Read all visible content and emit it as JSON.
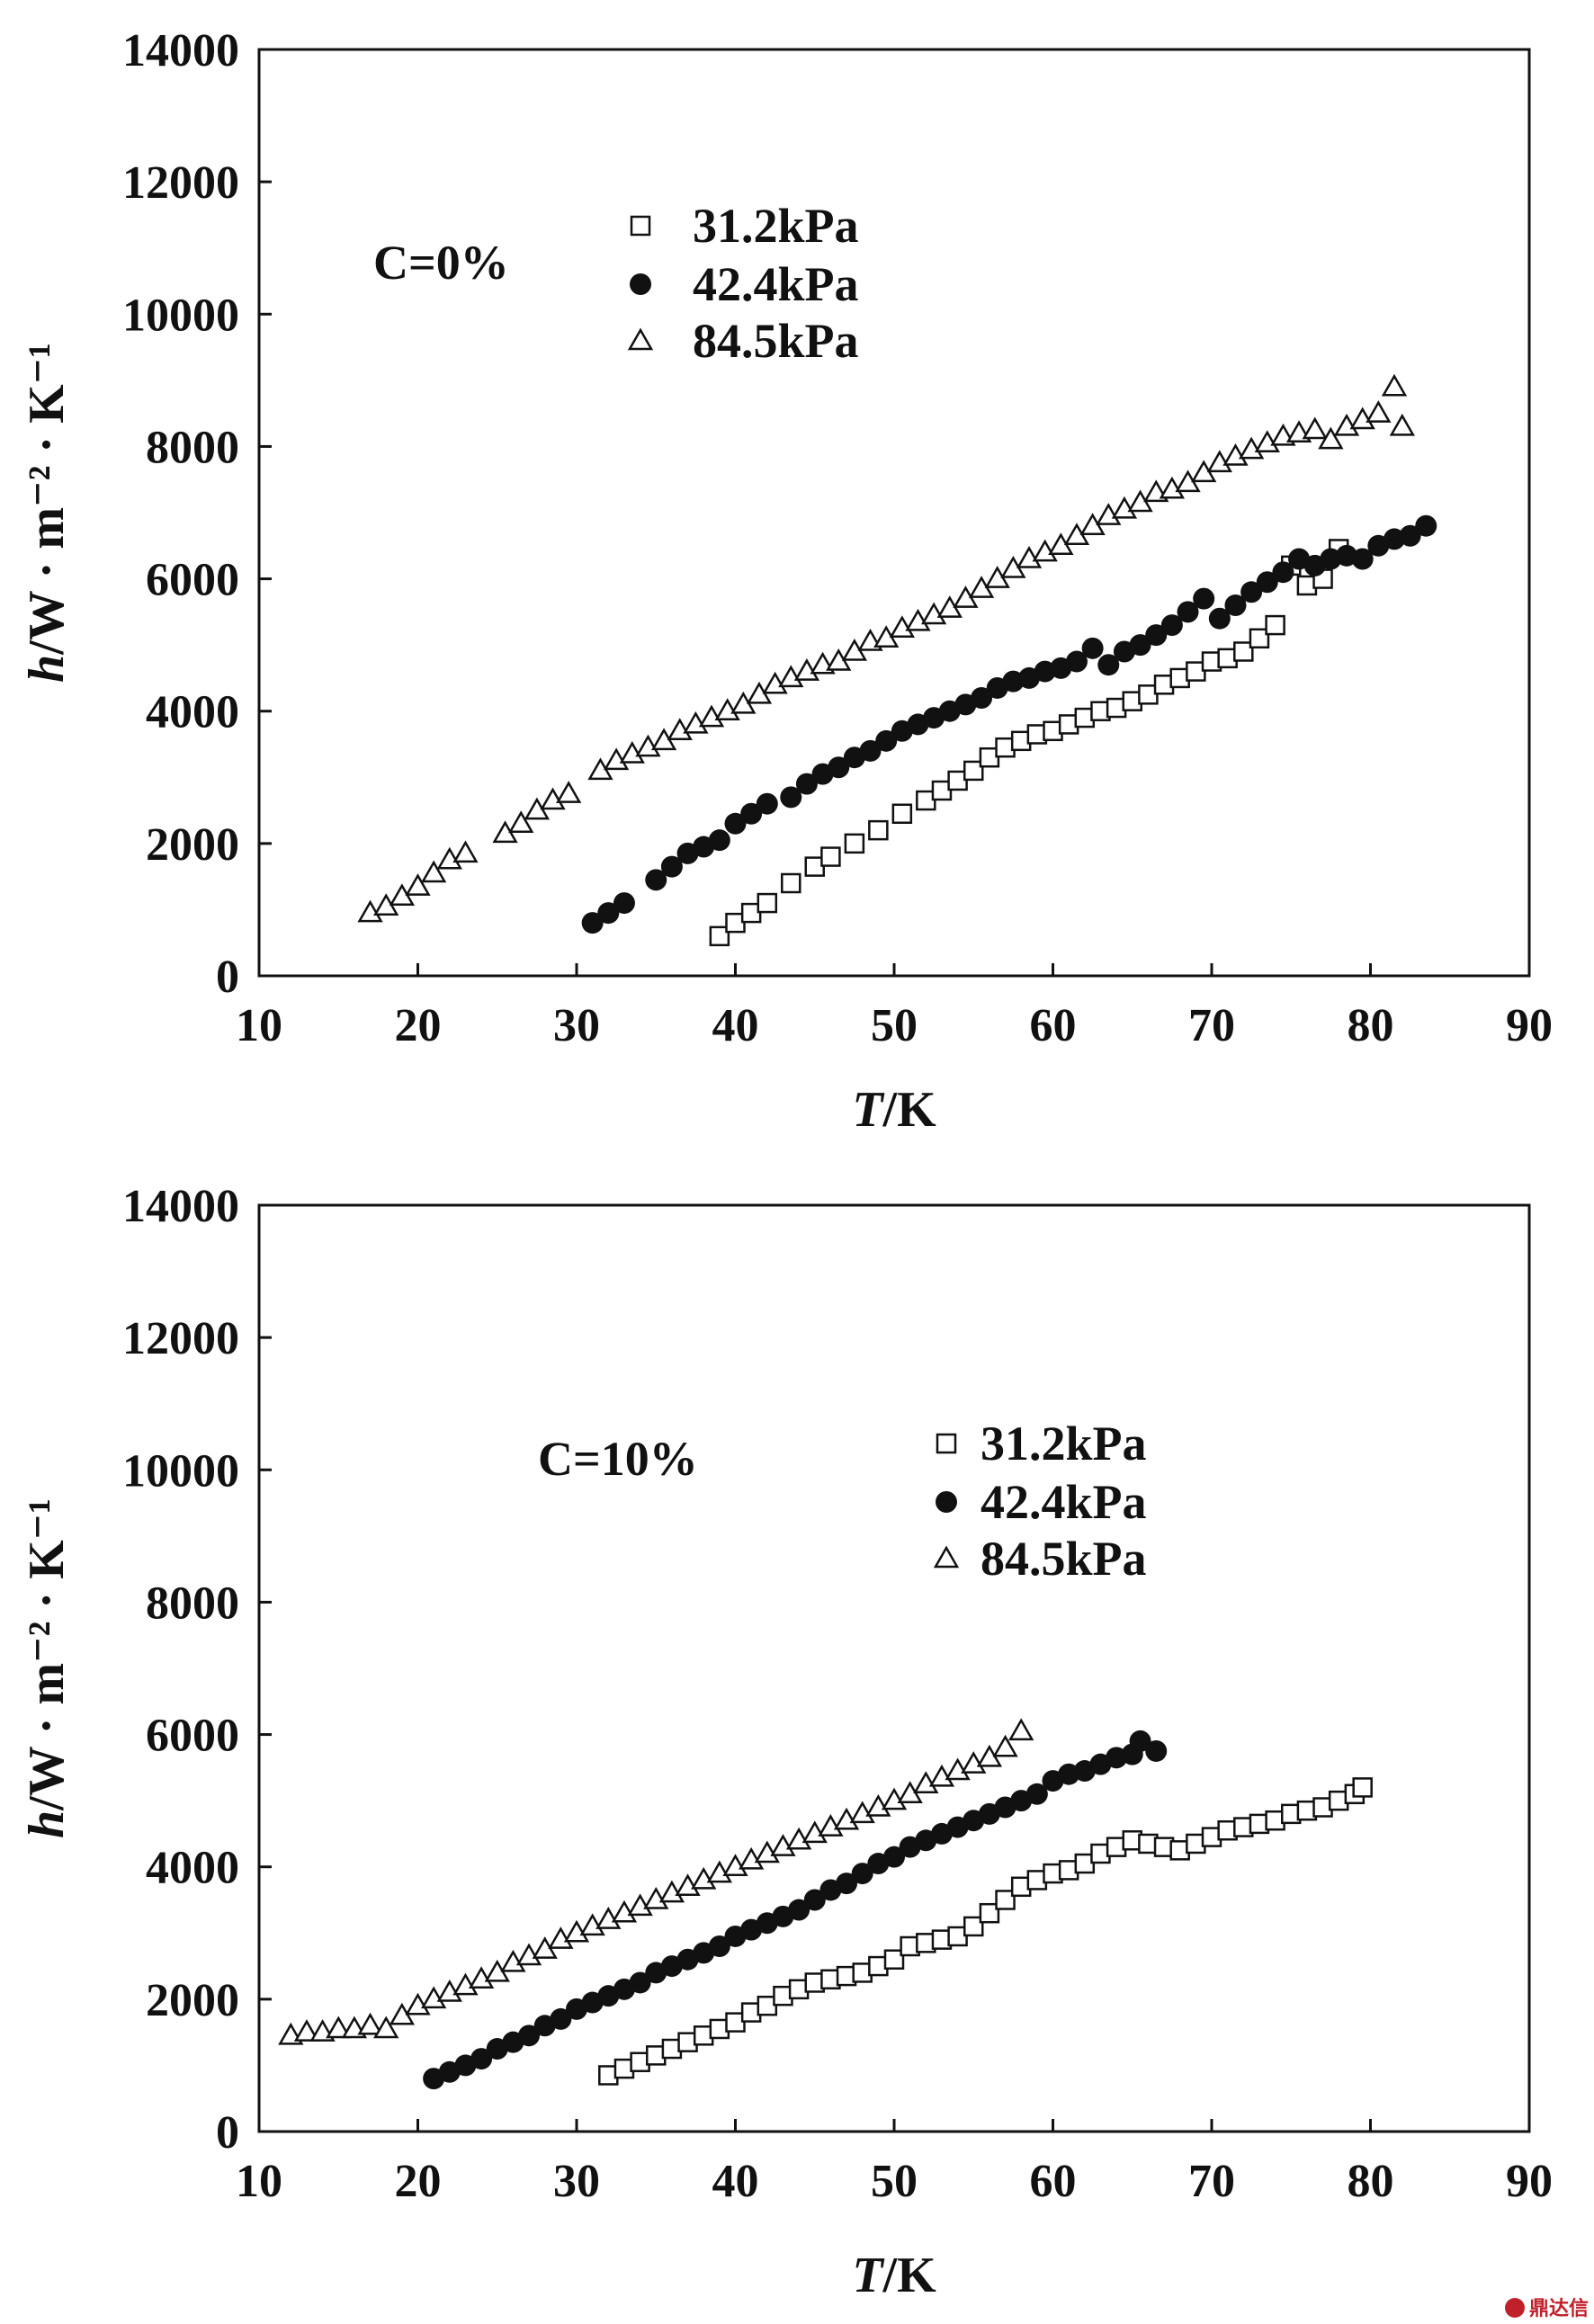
{
  "chart_data": [
    {
      "type": "scatter",
      "xlabel_italic": "T",
      "xlabel_rest": "/K",
      "ylabel_italic": "h",
      "ylabel_rest": "/W · m⁻² · K⁻¹",
      "xlim": [
        10,
        90
      ],
      "ylim": [
        0,
        14000
      ],
      "xticks": [
        "10",
        "20",
        "30",
        "40",
        "50",
        "60",
        "70",
        "80",
        "90"
      ],
      "yticks": [
        "0",
        "2000",
        "4000",
        "6000",
        "8000",
        "10000",
        "12000",
        "14000"
      ],
      "annotation": "C=0%",
      "legend_placement": "top-left",
      "grid": false,
      "series": [
        {
          "name": "31.2kPa",
          "marker": "open-square",
          "x": [
            39,
            40,
            41,
            42,
            43.5,
            45,
            46,
            47.5,
            49,
            50.5,
            52,
            53,
            54,
            55,
            56,
            57,
            58,
            59,
            60,
            61,
            62,
            63,
            64,
            65,
            66,
            67,
            68,
            69,
            70,
            71,
            72,
            73,
            74,
            75,
            76,
            77,
            78
          ],
          "y": [
            600,
            800,
            950,
            1100,
            1400,
            1650,
            1800,
            2000,
            2200,
            2450,
            2650,
            2800,
            2950,
            3100,
            3300,
            3450,
            3550,
            3650,
            3700,
            3800,
            3900,
            4000,
            4050,
            4150,
            4250,
            4400,
            4500,
            4600,
            4750,
            4800,
            4900,
            5100,
            5300,
            6200,
            5900,
            6000,
            6450
          ]
        },
        {
          "name": "42.4kPa",
          "marker": "filled-circle",
          "x": [
            31,
            32,
            33,
            35,
            36,
            37,
            38,
            39,
            40,
            41,
            42,
            43.5,
            44.5,
            45.5,
            46.5,
            47.5,
            48.5,
            49.5,
            50.5,
            51.5,
            52.5,
            53.5,
            54.5,
            55.5,
            56.5,
            57.5,
            58.5,
            59.5,
            60.5,
            61.5,
            62.5,
            63.5,
            64.5,
            65.5,
            66.5,
            67.5,
            68.5,
            69.5,
            70.5,
            71.5,
            72.5,
            73.5,
            74.5,
            75.5,
            76.5,
            77.5,
            78.5,
            79.5,
            80.5,
            81.5,
            82.5,
            83.5
          ],
          "y": [
            800,
            950,
            1100,
            1450,
            1650,
            1850,
            1950,
            2050,
            2300,
            2450,
            2600,
            2700,
            2900,
            3050,
            3150,
            3300,
            3400,
            3550,
            3700,
            3800,
            3900,
            4000,
            4100,
            4200,
            4350,
            4450,
            4500,
            4600,
            4650,
            4750,
            4950,
            4700,
            4900,
            5000,
            5150,
            5300,
            5500,
            5700,
            5400,
            5600,
            5800,
            5950,
            6100,
            6300,
            6200,
            6300,
            6350,
            6300,
            6500,
            6600,
            6650,
            6800
          ]
        },
        {
          "name": "84.5kPa",
          "marker": "open-triangle",
          "x": [
            17,
            18,
            19,
            20,
            21,
            22,
            23,
            25.5,
            26.5,
            27.5,
            28.5,
            29.5,
            31.5,
            32.5,
            33.5,
            34.5,
            35.5,
            36.5,
            37.5,
            38.5,
            39.5,
            40.5,
            41.5,
            42.5,
            43.5,
            44.5,
            45.5,
            46.5,
            47.5,
            48.5,
            49.5,
            50.5,
            51.5,
            52.5,
            53.5,
            54.5,
            55.5,
            56.5,
            57.5,
            58.5,
            59.5,
            60.5,
            61.5,
            62.5,
            63.5,
            64.5,
            65.5,
            66.5,
            67.5,
            68.5,
            69.5,
            70.5,
            71.5,
            72.5,
            73.5,
            74.5,
            75.5,
            76.5,
            77.5,
            78.5,
            79.5,
            80.5,
            81.5,
            82
          ],
          "y": [
            950,
            1050,
            1200,
            1350,
            1550,
            1750,
            1850,
            2150,
            2300,
            2500,
            2650,
            2750,
            3100,
            3250,
            3350,
            3450,
            3550,
            3700,
            3800,
            3900,
            4000,
            4100,
            4250,
            4400,
            4500,
            4600,
            4700,
            4750,
            4900,
            5050,
            5100,
            5250,
            5350,
            5450,
            5550,
            5700,
            5850,
            6000,
            6150,
            6300,
            6400,
            6500,
            6650,
            6800,
            6950,
            7050,
            7150,
            7300,
            7350,
            7450,
            7600,
            7750,
            7850,
            7950,
            8050,
            8150,
            8200,
            8250,
            8100,
            8300,
            8400,
            8500,
            8900,
            8300
          ]
        }
      ]
    },
    {
      "type": "scatter",
      "xlabel_italic": "T",
      "xlabel_rest": "/K",
      "ylabel_italic": "h",
      "ylabel_rest": "/W · m⁻² · K⁻¹",
      "xlim": [
        10,
        90
      ],
      "ylim": [
        0,
        14000
      ],
      "xticks": [
        "10",
        "20",
        "30",
        "40",
        "50",
        "60",
        "70",
        "80",
        "90"
      ],
      "yticks": [
        "0",
        "2000",
        "4000",
        "6000",
        "8000",
        "10000",
        "12000",
        "14000"
      ],
      "annotation": "C=10%",
      "legend_placement": "top-right",
      "grid": false,
      "series": [
        {
          "name": "31.2kPa",
          "marker": "open-square",
          "x": [
            32,
            33,
            34,
            35,
            36,
            37,
            38,
            39,
            40,
            41,
            42,
            43,
            44,
            45,
            46,
            47,
            48,
            49,
            50,
            51,
            52,
            53,
            54,
            55,
            56,
            57,
            58,
            59,
            60,
            61,
            62,
            63,
            64,
            65,
            66,
            67,
            68,
            69,
            70,
            71,
            72,
            73,
            74,
            75,
            76,
            77,
            78,
            79,
            79.5
          ],
          "y": [
            850,
            950,
            1050,
            1150,
            1250,
            1350,
            1450,
            1550,
            1650,
            1800,
            1900,
            2050,
            2150,
            2250,
            2300,
            2350,
            2400,
            2500,
            2600,
            2800,
            2850,
            2900,
            2950,
            3100,
            3300,
            3500,
            3700,
            3800,
            3900,
            3950,
            4050,
            4200,
            4300,
            4400,
            4350,
            4300,
            4250,
            4350,
            4450,
            4550,
            4600,
            4650,
            4700,
            4800,
            4850,
            4900,
            5000,
            5100,
            5200
          ]
        },
        {
          "name": "42.4kPa",
          "marker": "filled-circle",
          "x": [
            21,
            22,
            23,
            24,
            25,
            26,
            27,
            28,
            29,
            30,
            31,
            32,
            33,
            34,
            35,
            36,
            37,
            38,
            39,
            40,
            41,
            42,
            43,
            44,
            45,
            46,
            47,
            48,
            49,
            50,
            51,
            52,
            53,
            54,
            55,
            56,
            57,
            58,
            59,
            60,
            61,
            62,
            63,
            64,
            65,
            65.5,
            66.5
          ],
          "y": [
            800,
            900,
            1000,
            1100,
            1250,
            1350,
            1450,
            1600,
            1700,
            1850,
            1950,
            2050,
            2150,
            2250,
            2400,
            2500,
            2600,
            2700,
            2800,
            2950,
            3050,
            3150,
            3250,
            3350,
            3500,
            3650,
            3750,
            3900,
            4050,
            4150,
            4300,
            4400,
            4500,
            4600,
            4700,
            4800,
            4900,
            5000,
            5100,
            5300,
            5400,
            5450,
            5550,
            5650,
            5700,
            5900,
            5750
          ]
        },
        {
          "name": "84.5kPa",
          "marker": "open-triangle",
          "x": [
            12,
            13,
            14,
            15,
            16,
            17,
            18,
            19,
            20,
            21,
            22,
            23,
            24,
            25,
            26,
            27,
            28,
            29,
            30,
            31,
            32,
            33,
            34,
            35,
            36,
            37,
            38,
            39,
            40,
            41,
            42,
            43,
            44,
            45,
            46,
            47,
            48,
            49,
            50,
            51,
            52,
            53,
            54,
            55,
            56,
            57,
            58
          ],
          "y": [
            1450,
            1500,
            1500,
            1550,
            1550,
            1600,
            1550,
            1750,
            1900,
            2000,
            2100,
            2200,
            2300,
            2400,
            2550,
            2650,
            2750,
            2900,
            3000,
            3100,
            3200,
            3300,
            3400,
            3500,
            3600,
            3700,
            3800,
            3900,
            4000,
            4100,
            4200,
            4300,
            4400,
            4500,
            4600,
            4700,
            4800,
            4900,
            5000,
            5100,
            5250,
            5350,
            5450,
            5550,
            5650,
            5800,
            6050
          ]
        }
      ]
    }
  ],
  "watermark": "鼎达信"
}
